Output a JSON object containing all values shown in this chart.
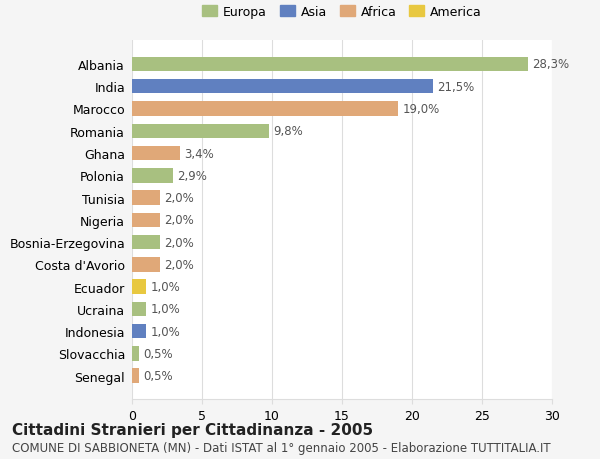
{
  "countries": [
    "Albania",
    "India",
    "Marocco",
    "Romania",
    "Ghana",
    "Polonia",
    "Tunisia",
    "Nigeria",
    "Bosnia-Erzegovina",
    "Costa d'Avorio",
    "Ecuador",
    "Ucraina",
    "Indonesia",
    "Slovacchia",
    "Senegal"
  ],
  "values": [
    28.3,
    21.5,
    19.0,
    9.8,
    3.4,
    2.9,
    2.0,
    2.0,
    2.0,
    2.0,
    1.0,
    1.0,
    1.0,
    0.5,
    0.5
  ],
  "labels": [
    "28,3%",
    "21,5%",
    "19,0%",
    "9,8%",
    "3,4%",
    "2,9%",
    "2,0%",
    "2,0%",
    "2,0%",
    "2,0%",
    "1,0%",
    "1,0%",
    "1,0%",
    "0,5%",
    "0,5%"
  ],
  "regions": [
    "Europa",
    "Asia",
    "Africa",
    "Europa",
    "Africa",
    "Europa",
    "Africa",
    "Africa",
    "Europa",
    "Africa",
    "America",
    "Europa",
    "Asia",
    "Europa",
    "Africa"
  ],
  "region_colors": {
    "Europa": "#a8c080",
    "Asia": "#6080c0",
    "Africa": "#e0a878",
    "America": "#e8c840"
  },
  "legend_order": [
    "Europa",
    "Asia",
    "Africa",
    "America"
  ],
  "title": "Cittadini Stranieri per Cittadinanza - 2005",
  "subtitle": "COMUNE DI SABBIONETA (MN) - Dati ISTAT al 1° gennaio 2005 - Elaborazione TUTTITALIA.IT",
  "xlim": [
    0,
    30
  ],
  "xticks": [
    0,
    5,
    10,
    15,
    20,
    25,
    30
  ],
  "bg_color": "#f5f5f5",
  "plot_bg_color": "#ffffff",
  "grid_color": "#dddddd",
  "bar_height": 0.65,
  "title_fontsize": 11,
  "subtitle_fontsize": 8.5,
  "tick_fontsize": 9,
  "label_fontsize": 8.5,
  "legend_fontsize": 9
}
